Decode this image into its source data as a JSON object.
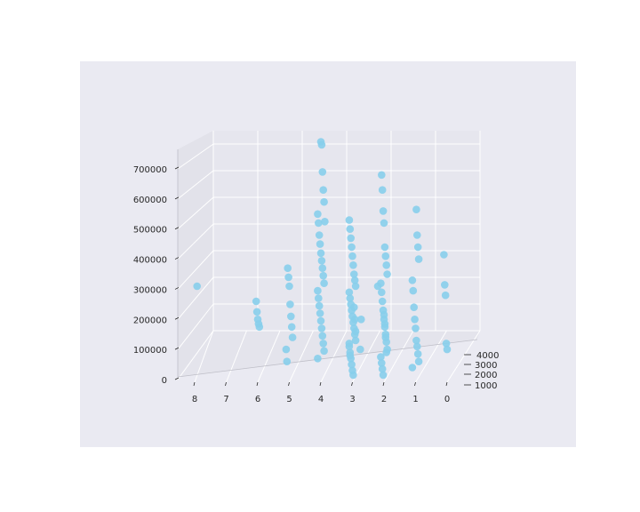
{
  "chart_data": {
    "type": "scatter",
    "projection": "3d",
    "title": "",
    "xlabel": "",
    "ylabel": "",
    "zlabel": "",
    "background_color": "#EAEAF2",
    "grid": true,
    "grid_color": "#FFFFFF",
    "marker_color": "#87CEEB",
    "x_ticks": [
      "8",
      "7",
      "6",
      "5",
      "4",
      "3",
      "2",
      "1",
      "0"
    ],
    "y_ticks": [
      "1000",
      "2000",
      "3000",
      "4000"
    ],
    "z_ticks": [
      "0",
      "100000",
      "200000",
      "300000",
      "400000",
      "500000",
      "600000",
      "700000"
    ],
    "xlim": [
      0,
      8.5
    ],
    "zlim": [
      0,
      790000
    ],
    "series": [
      {
        "points": [
          {
            "x": 0,
            "z": 415000
          },
          {
            "x": 0,
            "z": 315000
          },
          {
            "x": 0,
            "z": 280000
          },
          {
            "x": 0,
            "z": 120000
          },
          {
            "x": 0,
            "z": 100000
          },
          {
            "x": 1,
            "z": 565000
          },
          {
            "x": 1,
            "z": 480000
          },
          {
            "x": 1,
            "z": 440000
          },
          {
            "x": 1,
            "z": 400000
          },
          {
            "x": 1,
            "z": 330000
          },
          {
            "x": 1,
            "z": 295000
          },
          {
            "x": 1,
            "z": 240000
          },
          {
            "x": 1,
            "z": 200000
          },
          {
            "x": 1,
            "z": 170000
          },
          {
            "x": 1,
            "z": 130000
          },
          {
            "x": 1,
            "z": 110000
          },
          {
            "x": 1,
            "z": 85000
          },
          {
            "x": 1,
            "z": 60000
          },
          {
            "x": 1,
            "z": 40000
          },
          {
            "x": 2,
            "z": 680000
          },
          {
            "x": 2,
            "z": 630000
          },
          {
            "x": 2,
            "z": 560000
          },
          {
            "x": 2,
            "z": 520000
          },
          {
            "x": 2,
            "z": 440000
          },
          {
            "x": 2,
            "z": 410000
          },
          {
            "x": 2,
            "z": 380000
          },
          {
            "x": 2,
            "z": 350000
          },
          {
            "x": 2,
            "z": 320000
          },
          {
            "x": 2,
            "z": 290000
          },
          {
            "x": 2,
            "z": 260000
          },
          {
            "x": 2,
            "z": 230000
          },
          {
            "x": 2,
            "z": 200000
          },
          {
            "x": 2,
            "z": 175000
          },
          {
            "x": 2,
            "z": 150000
          },
          {
            "x": 2,
            "z": 125000
          },
          {
            "x": 2,
            "z": 100000
          },
          {
            "x": 2,
            "z": 75000
          },
          {
            "x": 2,
            "z": 55000
          },
          {
            "x": 2,
            "z": 35000
          },
          {
            "x": 2,
            "z": 15000
          },
          {
            "x": 2,
            "z": 215000
          },
          {
            "x": 2,
            "z": 185000
          },
          {
            "x": 2,
            "z": 140000
          },
          {
            "x": 2,
            "z": 90000
          },
          {
            "x": 2.3,
            "z": 310000
          },
          {
            "x": 3,
            "z": 530000
          },
          {
            "x": 3,
            "z": 500000
          },
          {
            "x": 3,
            "z": 470000
          },
          {
            "x": 3,
            "z": 440000
          },
          {
            "x": 3,
            "z": 410000
          },
          {
            "x": 3,
            "z": 380000
          },
          {
            "x": 3,
            "z": 350000
          },
          {
            "x": 3,
            "z": 330000
          },
          {
            "x": 3,
            "z": 310000
          },
          {
            "x": 3,
            "z": 290000
          },
          {
            "x": 3,
            "z": 270000
          },
          {
            "x": 3,
            "z": 250000
          },
          {
            "x": 3,
            "z": 230000
          },
          {
            "x": 3,
            "z": 210000
          },
          {
            "x": 3,
            "z": 190000
          },
          {
            "x": 3,
            "z": 170000
          },
          {
            "x": 3,
            "z": 150000
          },
          {
            "x": 3,
            "z": 130000
          },
          {
            "x": 3,
            "z": 110000
          },
          {
            "x": 3,
            "z": 90000
          },
          {
            "x": 3,
            "z": 70000
          },
          {
            "x": 3,
            "z": 50000
          },
          {
            "x": 3,
            "z": 30000
          },
          {
            "x": 3,
            "z": 15000
          },
          {
            "x": 3,
            "z": 240000
          },
          {
            "x": 3,
            "z": 200000
          },
          {
            "x": 3,
            "z": 160000
          },
          {
            "x": 3,
            "z": 120000
          },
          {
            "x": 3,
            "z": 80000
          },
          {
            "x": 2.7,
            "z": 100000
          },
          {
            "x": 2.7,
            "z": 200000
          },
          {
            "x": 4,
            "z": 790000
          },
          {
            "x": 4,
            "z": 780000
          },
          {
            "x": 4,
            "z": 690000
          },
          {
            "x": 4,
            "z": 630000
          },
          {
            "x": 4,
            "z": 590000
          },
          {
            "x": 4,
            "z": 550000
          },
          {
            "x": 4,
            "z": 520000
          },
          {
            "x": 4,
            "z": 480000
          },
          {
            "x": 4,
            "z": 450000
          },
          {
            "x": 4,
            "z": 420000
          },
          {
            "x": 4,
            "z": 395000
          },
          {
            "x": 4,
            "z": 370000
          },
          {
            "x": 4,
            "z": 345000
          },
          {
            "x": 4,
            "z": 320000
          },
          {
            "x": 4,
            "z": 295000
          },
          {
            "x": 4,
            "z": 270000
          },
          {
            "x": 4,
            "z": 245000
          },
          {
            "x": 4,
            "z": 220000
          },
          {
            "x": 4,
            "z": 195000
          },
          {
            "x": 4,
            "z": 170000
          },
          {
            "x": 4,
            "z": 145000
          },
          {
            "x": 4,
            "z": 120000
          },
          {
            "x": 4,
            "z": 95000
          },
          {
            "x": 4,
            "z": 70000
          },
          {
            "x": 3.8,
            "z": 525000
          },
          {
            "x": 5,
            "z": 370000
          },
          {
            "x": 5,
            "z": 340000
          },
          {
            "x": 5,
            "z": 310000
          },
          {
            "x": 5,
            "z": 250000
          },
          {
            "x": 5,
            "z": 210000
          },
          {
            "x": 5,
            "z": 175000
          },
          {
            "x": 5,
            "z": 140000
          },
          {
            "x": 5,
            "z": 100000
          },
          {
            "x": 5,
            "z": 60000
          },
          {
            "x": 6,
            "z": 260000
          },
          {
            "x": 6,
            "z": 225000
          },
          {
            "x": 6,
            "z": 200000
          },
          {
            "x": 6,
            "z": 185000
          },
          {
            "x": 6,
            "z": 175000
          },
          {
            "x": 8,
            "z": 310000
          }
        ]
      }
    ]
  }
}
